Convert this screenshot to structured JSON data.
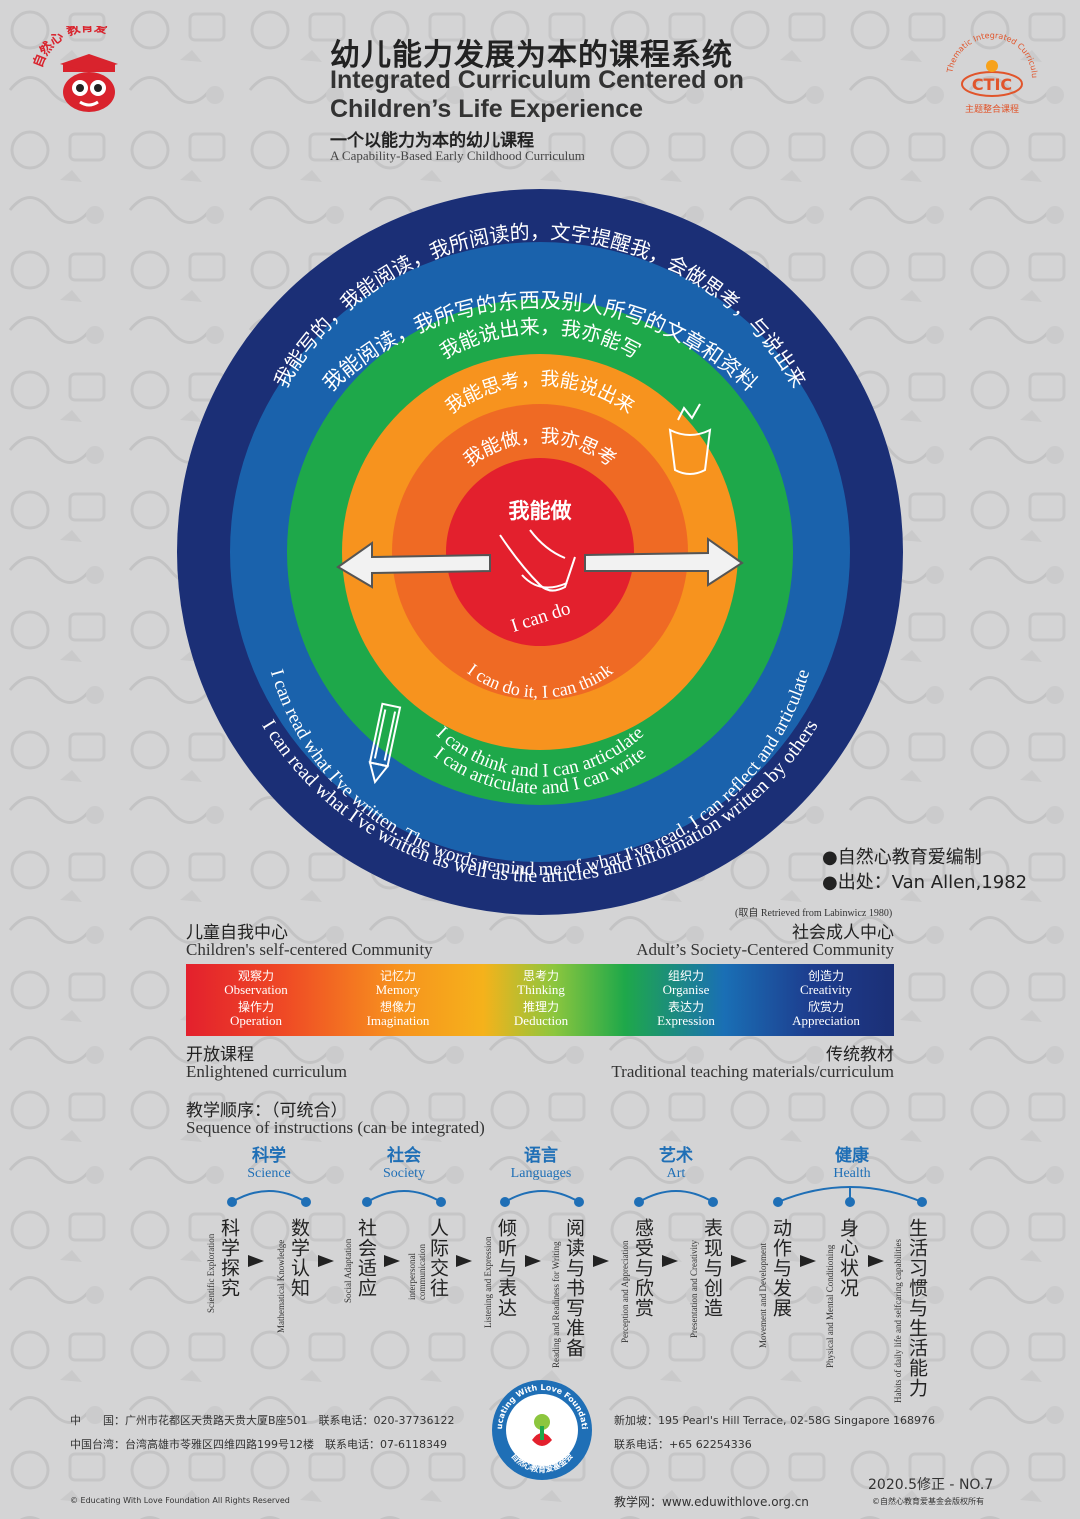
{
  "header": {
    "title_zh": "幼儿能力发展为本的课程系统",
    "title_en_1": "Integrated Curriculum Centered on",
    "title_en_2": "Children’s Life Experience",
    "subtitle_zh": "一个以能力为本的幼儿课程",
    "subtitle_en": "A Capability-Based Early Childhood Curriculum",
    "logo_left_top": "自然心 教育爱",
    "logo_right_arc": "Thematic Integrated Curriculum",
    "logo_right_mark": "CTIC",
    "logo_right_bottom": "主题整合课程"
  },
  "rings": {
    "outer_zh": "我能阅读，我所写的东西及别人所写的文章和资料",
    "outer_en": "I can read what I've written as well as the articles and information written by others",
    "blue2_zh": "我能写的，我能阅读，我所阅读的，文字提醒我，会做思考，与说出来",
    "blue2_en": "I can read what I've written. The words remind me of what I've read. I can reflect and articulate",
    "green_zh": "我能说出来，我亦能写",
    "green_en": "I can articulate and I can write",
    "orange_zh": "我能思考，我能说出来",
    "orange_en": "I can think and I can articulate",
    "dark_orange_zh": "我能做，我亦思考",
    "dark_orange_en": "I can do it, I can think",
    "center_zh": "我能做",
    "center_en": "I can do",
    "colors": [
      "#1b2f76",
      "#1a62ac",
      "#1ea84a",
      "#f7931e",
      "#ef6a24",
      "#e3202d"
    ]
  },
  "credits": {
    "editor": "●自然心教育爱编制",
    "source": "●出处：Van Allen,1982",
    "retrieved": "(取自 Retrieved from Labinwicz 1980)"
  },
  "scale": {
    "left_zh": "儿童自我中心",
    "left_en": "Children's self-centered Community",
    "right_zh": "社会成人中心",
    "right_en": "Adult’s Society-Centered Community",
    "cells": [
      {
        "top_zh": "观察力",
        "top_en": "Observation",
        "bot_zh": "操作力",
        "bot_en": "Operation"
      },
      {
        "top_zh": "记忆力",
        "top_en": "Memory",
        "bot_zh": "想像力",
        "bot_en": "Imagination"
      },
      {
        "top_zh": "思考力",
        "top_en": "Thinking",
        "bot_zh": "推理力",
        "bot_en": "Deduction"
      },
      {
        "top_zh": "组织力",
        "top_en": "Organise",
        "bot_zh": "表达力",
        "bot_en": "Expression"
      },
      {
        "top_zh": "创造力",
        "top_en": "Creativity",
        "bot_zh": "欣赏力",
        "bot_en": "Appreciation"
      }
    ],
    "below_left_zh": "开放课程",
    "below_left_en": "Enlightened curriculum",
    "below_right_zh": "传统教材",
    "below_right_en": "Traditional teaching materials/curriculum"
  },
  "sequence": {
    "title_zh": "教学顺序：（可统合）",
    "title_en": "Sequence of instructions (can be integrated)",
    "subjects": [
      {
        "zh": "科学",
        "en": "Science"
      },
      {
        "zh": "社会",
        "en": "Society"
      },
      {
        "zh": "语言",
        "en": "Languages"
      },
      {
        "zh": "艺术",
        "en": "Art"
      },
      {
        "zh": "健康",
        "en": "Health"
      }
    ],
    "items": [
      {
        "zh": "科学探究",
        "en": "Scientific Exploration"
      },
      {
        "zh": "数学认知",
        "en": "Mathematical Knowledge"
      },
      {
        "zh": "社会适应",
        "en": "Social Adaptation"
      },
      {
        "zh": "人际交往",
        "en": "interpersonal communication"
      },
      {
        "zh": "倾听与表达",
        "en": "Listening and Expression"
      },
      {
        "zh": "阅读与书写准备",
        "en": "Reading and Readiness for Writing"
      },
      {
        "zh": "感受与欣赏",
        "en": "Perception and Appreciation"
      },
      {
        "zh": "表现与创造",
        "en": "Presentation and Creativity"
      },
      {
        "zh": "动作与发展",
        "en": "Movement and Development"
      },
      {
        "zh": "身心状况",
        "en": "Physical and Mental Conditioning"
      },
      {
        "zh": "生活习惯与生活能力",
        "en": "Habits of daily life and selfcaring capabilities"
      }
    ]
  },
  "footer": {
    "cn_address": "中　　国：广州市花都区天贵路天贵大厦B座501　联系电话：020-37736122",
    "tw_address": "中国台湾：台湾高雄市苓雅区四维四路199号12楼　联系电话：07-6118349",
    "sg_address": "新加坡：195 Pearl's Hill Terrace, 02-58G Singapore 168976",
    "sg_phone": "联系电话：+65 62254336",
    "foundation_en": "Educating With Love Foundation",
    "foundation_zh": "自然心教育爱基金会",
    "website": "教学网：www.eduwithlove.org.cn",
    "copyright_en": "© Educating With Love Foundation All Rights Reserved",
    "edition": "2020.5修正 - NO.7",
    "copyright_zh": "©自然心教育爱基金会版权所有"
  }
}
